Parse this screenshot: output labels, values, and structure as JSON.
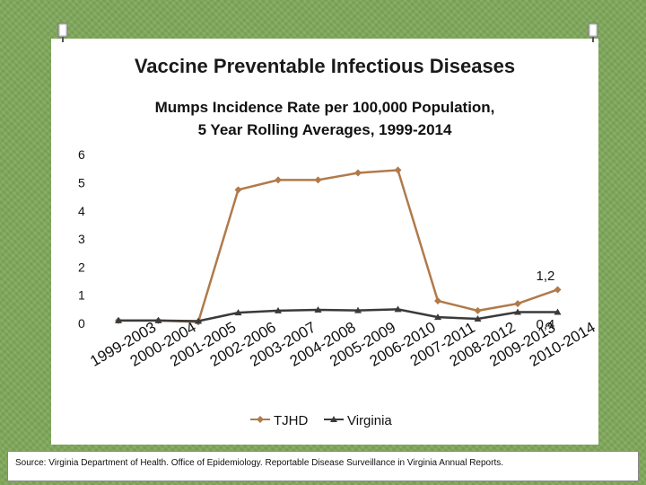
{
  "slide": {
    "title": "Vaccine Preventable Infectious Diseases",
    "source": "Source: Virginia Department of Health. Office of Epidemiology. Reportable Disease Surveillance in Virginia Annual Reports."
  },
  "chart_data": {
    "type": "line",
    "title": "Mumps Incidence Rate per 100,000 Population,\n5 Year Rolling Averages, 1999-2014",
    "xlabel": "",
    "ylabel": "",
    "ylim": [
      0,
      6
    ],
    "yticks": [
      "0",
      "1",
      "2",
      "3",
      "4",
      "5",
      "6"
    ],
    "categories": [
      "1999-2003",
      "2000-2004",
      "2001-2005",
      "2002-2006",
      "2003-2007",
      "2004-2008",
      "2005-2009",
      "2006-2010",
      "2007-2011",
      "2008-2012",
      "2009-2013",
      "2010-2014"
    ],
    "series": [
      {
        "name": "TJHD",
        "color": "#b07a4a",
        "marker": "diamond",
        "values": [
          0.1,
          0.1,
          0.05,
          4.75,
          5.1,
          5.1,
          5.35,
          5.45,
          0.8,
          0.45,
          0.7,
          1.2
        ]
      },
      {
        "name": "Virginia",
        "color": "#3a3a3a",
        "marker": "triangle",
        "values": [
          0.1,
          0.1,
          0.08,
          0.38,
          0.45,
          0.48,
          0.46,
          0.5,
          0.22,
          0.16,
          0.4,
          0.4
        ]
      }
    ],
    "annotations": [
      "1,2",
      "0,4"
    ],
    "grid": false,
    "legend_position": "bottom"
  }
}
